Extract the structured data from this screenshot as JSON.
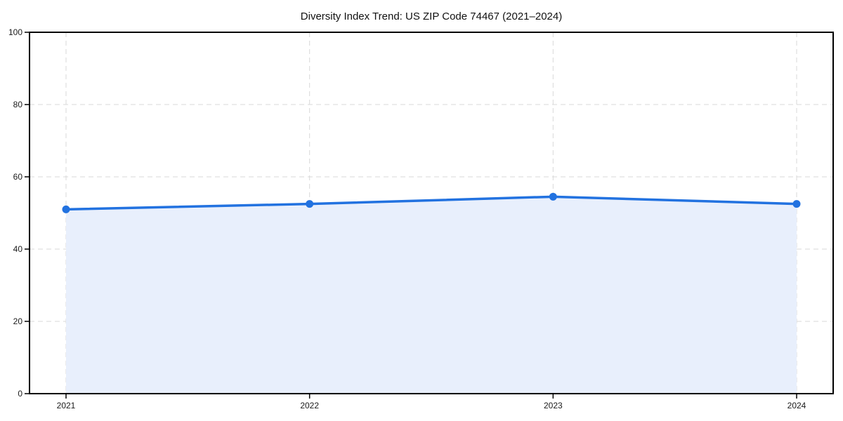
{
  "page": {
    "background": "#ffffff"
  },
  "chart_data": {
    "type": "area",
    "title": "Diversity Index Trend: US ZIP Code 74467 (2021–2024)",
    "categories": [
      "2021",
      "2022",
      "2023",
      "2024"
    ],
    "series": [
      {
        "name": "Diversity Index",
        "values": [
          51,
          52.5,
          54.5,
          52.5
        ]
      }
    ],
    "xlabel": "",
    "ylabel": "",
    "ylim": [
      0,
      100
    ],
    "yticks": [
      0,
      20,
      40,
      60,
      80,
      100
    ],
    "grid": true,
    "grid_style": "dashed",
    "legend_position": "none",
    "marker": "circle",
    "colors": {
      "line": "#2272e0",
      "marker": "#2272e0",
      "fill": "#e8effc",
      "grid": "#d9d9d9",
      "spine": "#000000",
      "text": "#1a1a1a",
      "background": "#ffffff"
    }
  }
}
